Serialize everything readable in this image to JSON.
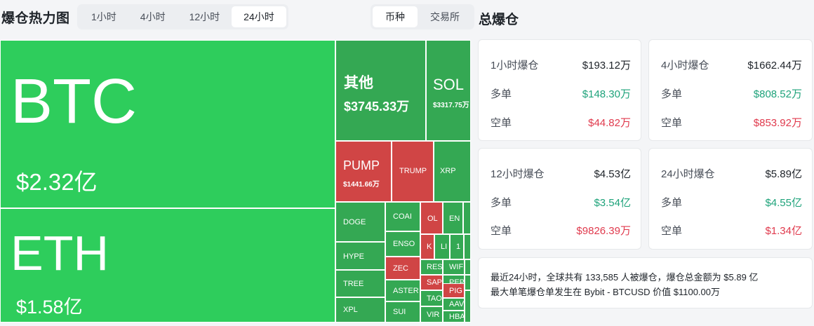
{
  "header": {
    "title": "爆仓热力图",
    "time_options": [
      "1小时",
      "4小时",
      "12小时",
      "24小时"
    ],
    "time_active": "24小时",
    "group_options": [
      "币种",
      "交易所"
    ],
    "group_active": "币种",
    "total_title": "总爆仓"
  },
  "treemap": {
    "btc": {
      "name": "BTC",
      "value": "$2.32亿"
    },
    "eth": {
      "name": "ETH",
      "value": "$1.58亿"
    },
    "other": {
      "name": "其他",
      "value": "$3745.33万"
    },
    "sol": {
      "name": "SOL",
      "value": "$3317.75万"
    },
    "pump": {
      "name": "PUMP",
      "value": "$1441.66万"
    },
    "small": [
      "TRUMP",
      "XRP",
      "DOGE",
      "HYPE",
      "TREE",
      "XPL",
      "COAI",
      "ENSO",
      "ZEC",
      "ASTER",
      "SUI",
      "OL",
      "EN",
      "K",
      "LI",
      "1",
      "RES",
      "WIF",
      "SAP",
      "PEP",
      "TAO",
      "PIG",
      "VIR",
      "AAV",
      "HBA"
    ]
  },
  "cards": [
    {
      "title": "1小时爆仓",
      "total": "$193.12万",
      "long_label": "多单",
      "long": "$148.30万",
      "short_label": "空单",
      "short": "$44.82万"
    },
    {
      "title": "4小时爆仓",
      "total": "$1662.44万",
      "long_label": "多单",
      "long": "$808.52万",
      "short_label": "空单",
      "short": "$853.92万"
    },
    {
      "title": "12小时爆仓",
      "total": "$4.53亿",
      "long_label": "多单",
      "long": "$3.54亿",
      "short_label": "空单",
      "short": "$9826.39万"
    },
    {
      "title": "24小时爆仓",
      "total": "$5.89亿",
      "long_label": "多单",
      "long": "$4.55亿",
      "short_label": "空单",
      "short": "$1.34亿"
    }
  ],
  "summary": {
    "line1": "最近24小时，全球共有 133,585 人被爆仓，爆仓总金额为 $5.89 亿",
    "line2": "最大单笔爆仓单发生在 Bybit - BTCUSD 价值 $1100.00万"
  },
  "colors": {
    "long_green": "#1fa37b",
    "short_red": "#e03a4d",
    "tile_green": "#2ecd5c",
    "tile_red": "#d04545"
  }
}
